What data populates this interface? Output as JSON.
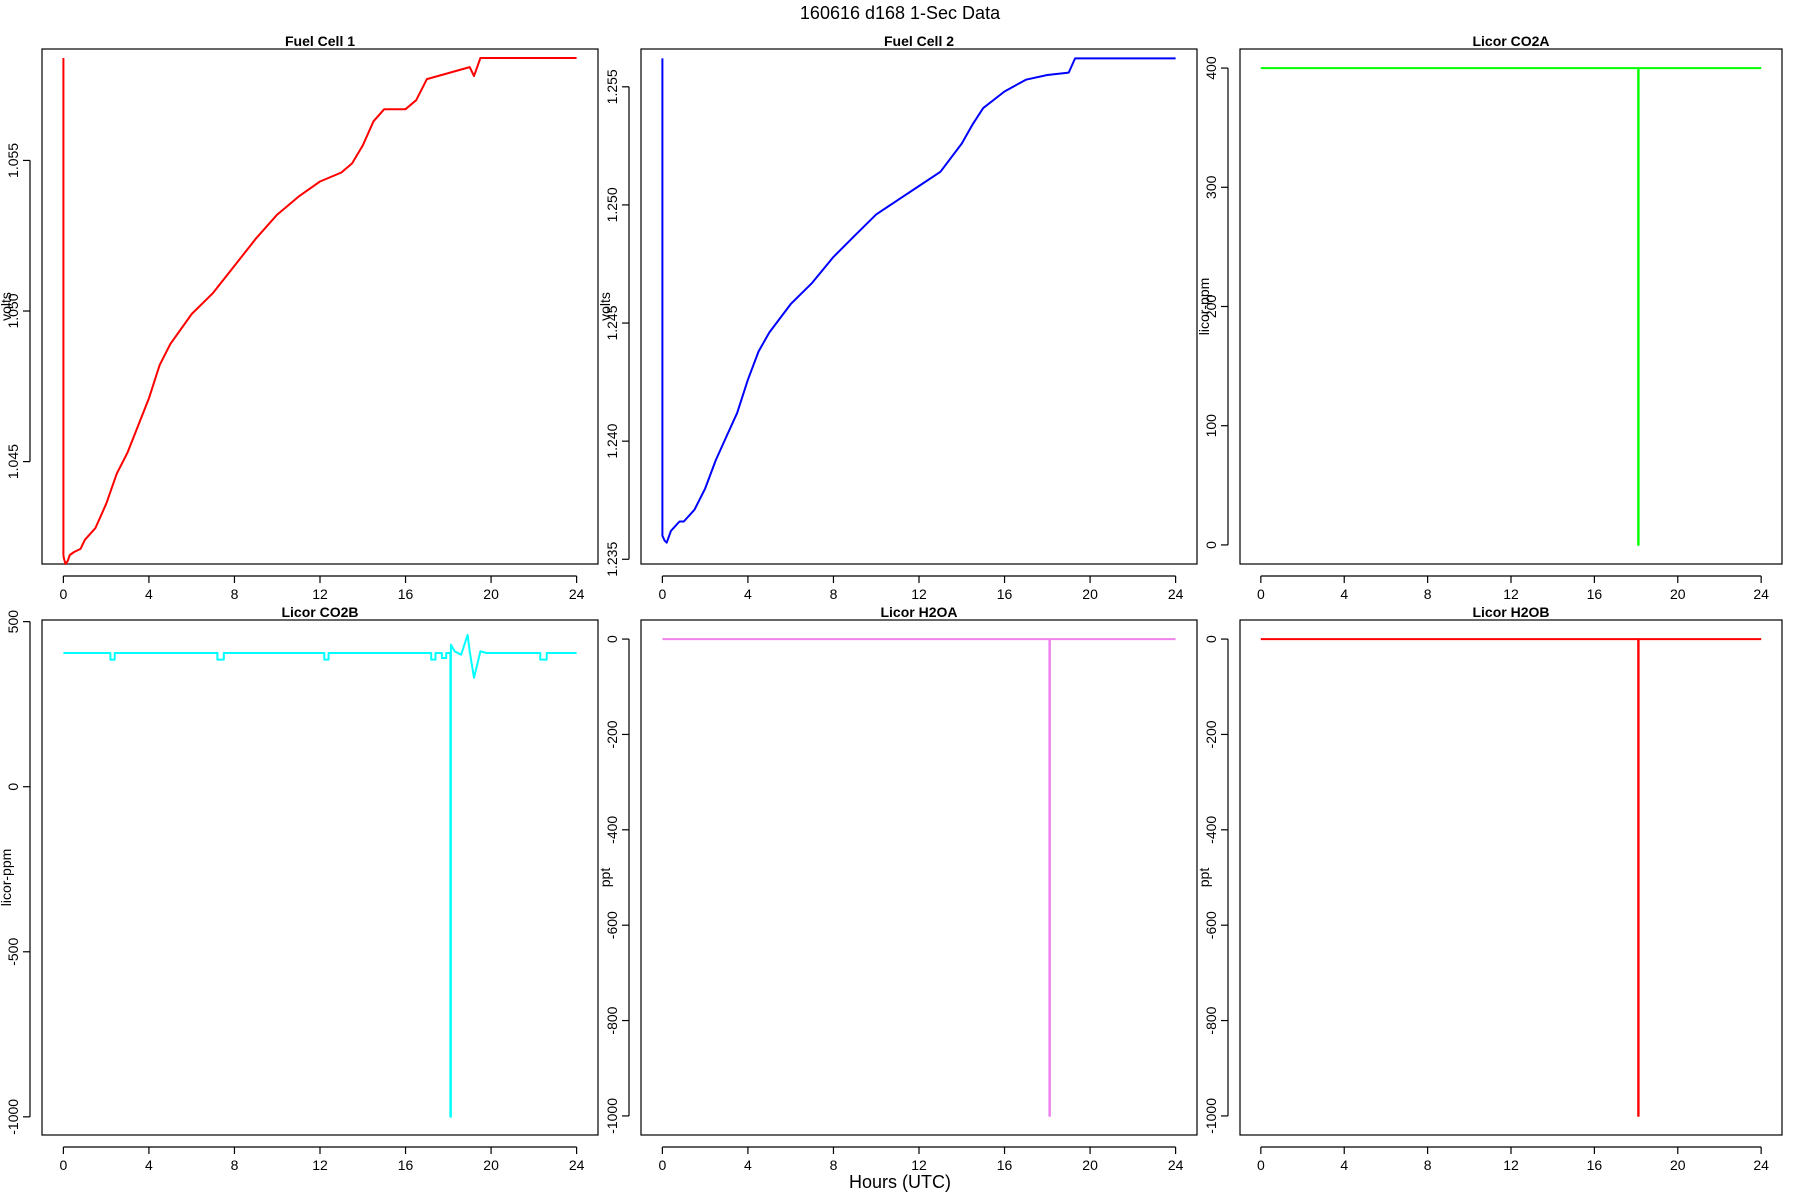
{
  "figure": {
    "title": "160616   d168   1-Sec Data",
    "xlabel": "Hours (UTC)"
  },
  "chart_data": [
    {
      "type": "line",
      "title": "Fuel Cell 1",
      "xlabel": "",
      "ylabel": "volts",
      "color": "#ff0000",
      "xlim": [
        -1,
        25
      ],
      "ylim": [
        1.0416,
        1.0587
      ],
      "xticks": [
        0,
        4,
        8,
        12,
        16,
        20,
        24
      ],
      "yticks": [
        1.045,
        1.05,
        1.055
      ],
      "ytick_labels": [
        "1.045",
        "1.050",
        "1.055"
      ],
      "series": [
        {
          "x": [
            0,
            0,
            0.02,
            0.1,
            0.2,
            0.3,
            0.5,
            0.8,
            1.0,
            1.5,
            2.0,
            2.5,
            3.0,
            3.5,
            4.0,
            4.5,
            5.0,
            6.0,
            7.0,
            8.0,
            9.0,
            10.0,
            11.0,
            12.0,
            13.0,
            13.5,
            14.0,
            14.5,
            15.0,
            16.0,
            16.5,
            17.0,
            18.0,
            19.0,
            19.2,
            19.5,
            21.0,
            24.0
          ],
          "y": [
            1.0584,
            1.0419,
            1.0418,
            1.0416,
            1.0417,
            1.0419,
            1.042,
            1.0421,
            1.0424,
            1.0428,
            1.0436,
            1.0446,
            1.0453,
            1.0462,
            1.0471,
            1.0482,
            1.0489,
            1.0499,
            1.0506,
            1.0515,
            1.0524,
            1.0532,
            1.0538,
            1.0543,
            1.0546,
            1.0549,
            1.0555,
            1.0563,
            1.0567,
            1.0567,
            1.057,
            1.0577,
            1.0579,
            1.0581,
            1.0578,
            1.0584,
            1.0584,
            1.0584
          ]
        }
      ]
    },
    {
      "type": "line",
      "title": "Fuel Cell 2",
      "xlabel": "",
      "ylabel": "volts",
      "color": "#0000ff",
      "xlim": [
        -1,
        25
      ],
      "ylim": [
        1.2348,
        1.2566
      ],
      "xticks": [
        0,
        4,
        8,
        12,
        16,
        20,
        24
      ],
      "yticks": [
        1.235,
        1.24,
        1.245,
        1.25,
        1.255
      ],
      "ytick_labels": [
        "1.235",
        "1.240",
        "1.245",
        "1.250",
        "1.255"
      ],
      "series": [
        {
          "x": [
            0,
            0,
            0.1,
            0.2,
            0.4,
            0.8,
            1.0,
            1.5,
            2.0,
            2.5,
            3.0,
            3.5,
            4.0,
            4.5,
            5.0,
            6.0,
            7.0,
            8.0,
            9.0,
            10.0,
            11.0,
            12.0,
            13.0,
            14.0,
            14.5,
            15.0,
            16.0,
            17.0,
            18.0,
            19.0,
            19.3,
            20.0,
            24.0
          ],
          "y": [
            1.2562,
            1.236,
            1.2358,
            1.2357,
            1.2362,
            1.2366,
            1.2366,
            1.2371,
            1.238,
            1.2392,
            1.2402,
            1.2412,
            1.2426,
            1.2438,
            1.2446,
            1.2458,
            1.2467,
            1.2478,
            1.2487,
            1.2496,
            1.2502,
            1.2508,
            1.2514,
            1.2526,
            1.2534,
            1.2541,
            1.2548,
            1.2553,
            1.2555,
            1.2556,
            1.2562,
            1.2562,
            1.2562
          ]
        }
      ]
    },
    {
      "type": "line",
      "title": "Licor CO2A",
      "xlabel": "",
      "ylabel": "licor-ppm",
      "color": "#00ff00",
      "xlim": [
        -1,
        25
      ],
      "ylim": [
        -16,
        416
      ],
      "xticks": [
        0,
        4,
        8,
        12,
        16,
        20,
        24
      ],
      "yticks": [
        0,
        100,
        200,
        300,
        400
      ],
      "ytick_labels": [
        "0",
        "100",
        "200",
        "300",
        "400"
      ],
      "series": [
        {
          "x": [
            0,
            18.1,
            18.1,
            18.12,
            18.12,
            24
          ],
          "y": [
            400,
            400,
            0,
            0,
            400,
            400
          ]
        }
      ]
    },
    {
      "type": "line",
      "title": "Licor CO2B",
      "xlabel": "",
      "ylabel": "licor-ppm",
      "color": "#00ffff",
      "xlim": [
        -1,
        25
      ],
      "ylim": [
        -1055,
        505
      ],
      "xticks": [
        0,
        4,
        8,
        12,
        16,
        20,
        24
      ],
      "yticks": [
        -1000,
        -500,
        0,
        500
      ],
      "ytick_labels": [
        "-1000",
        "-500",
        "0",
        "500"
      ],
      "series": [
        {
          "x": [
            0,
            2.2,
            2.2,
            2.4,
            2.4,
            7.2,
            7.2,
            7.5,
            7.5,
            12.2,
            12.2,
            12.4,
            12.4,
            17.2,
            17.2,
            17.4,
            17.4,
            17.7,
            17.7,
            17.9,
            17.9,
            18.1,
            18.1,
            18.12,
            18.12,
            18.3,
            18.6,
            18.9,
            19.0,
            19.2,
            19.5,
            19.8,
            22.3,
            22.3,
            22.6,
            22.6,
            24
          ],
          "y": [
            405,
            405,
            385,
            385,
            405,
            405,
            385,
            385,
            405,
            405,
            385,
            385,
            405,
            405,
            385,
            385,
            405,
            405,
            390,
            390,
            405,
            405,
            -1000,
            -1000,
            430,
            410,
            400,
            460,
            410,
            330,
            410,
            405,
            405,
            385,
            385,
            405,
            405
          ]
        }
      ]
    },
    {
      "type": "line",
      "title": "Licor H2OA",
      "xlabel": "",
      "ylabel": "ppt",
      "color": "#ee82ee",
      "xlim": [
        -1,
        25
      ],
      "ylim": [
        -1040,
        40
      ],
      "xticks": [
        0,
        4,
        8,
        12,
        16,
        20,
        24
      ],
      "yticks": [
        -1000,
        -800,
        -600,
        -400,
        -200,
        0
      ],
      "ytick_labels": [
        "-1000",
        "-800",
        "-600",
        "-400",
        "-200",
        "0"
      ],
      "series": [
        {
          "x": [
            0,
            18.1,
            18.1,
            18.12,
            18.12,
            24
          ],
          "y": [
            0,
            0,
            -1000,
            -1000,
            0,
            0
          ]
        }
      ]
    },
    {
      "type": "line",
      "title": "Licor H2OB",
      "xlabel": "",
      "ylabel": "ppt",
      "color": "#ff0000",
      "xlim": [
        -1,
        25
      ],
      "ylim": [
        -1040,
        40
      ],
      "xticks": [
        0,
        4,
        8,
        12,
        16,
        20,
        24
      ],
      "yticks": [
        -1000,
        -800,
        -600,
        -400,
        -200,
        0
      ],
      "ytick_labels": [
        "-1000",
        "-800",
        "-600",
        "-400",
        "-200",
        "0"
      ],
      "series": [
        {
          "x": [
            0,
            18.1,
            18.1,
            18.12,
            18.12,
            24
          ],
          "y": [
            0,
            0,
            -1000,
            -1000,
            0,
            0
          ]
        }
      ]
    }
  ]
}
